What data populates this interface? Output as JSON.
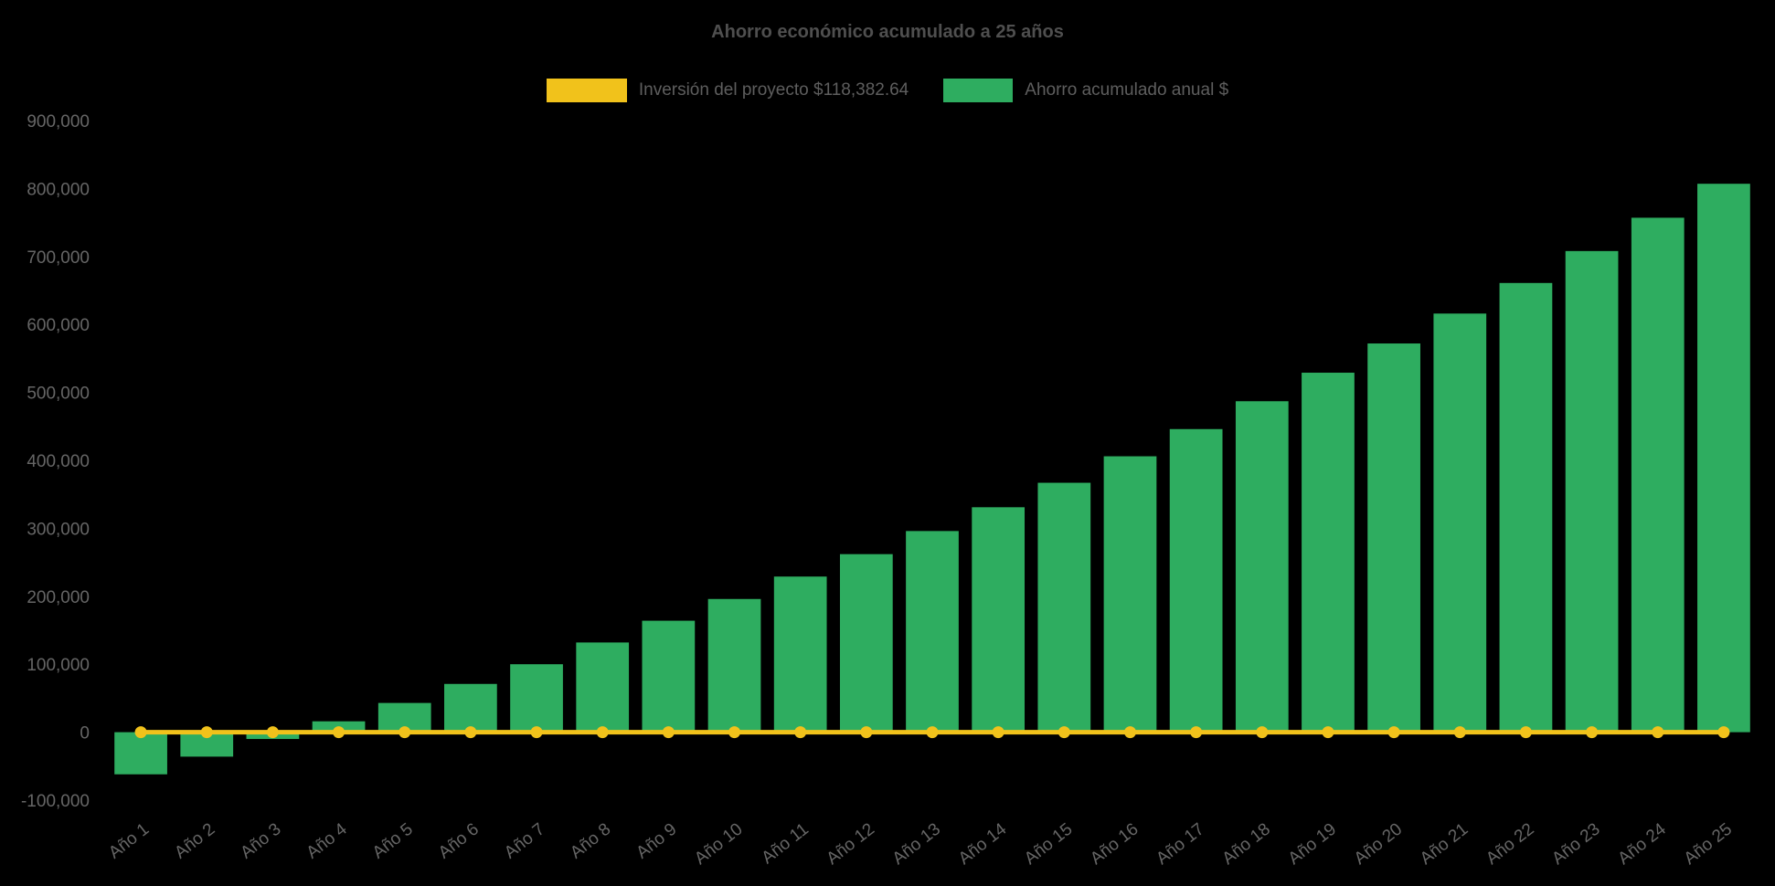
{
  "chart_data": {
    "type": "bar",
    "title": "Ahorro económico acumulado a 25 años",
    "background": "#000000",
    "grid": false,
    "legend_position": "top",
    "ylim": [
      -100000,
      900000
    ],
    "y_tick_step": 100000,
    "y_ticks": [
      {
        "value": 900000,
        "label": "900,000"
      },
      {
        "value": 800000,
        "label": "800,000"
      },
      {
        "value": 700000,
        "label": "700,000"
      },
      {
        "value": 600000,
        "label": "600,000"
      },
      {
        "value": 500000,
        "label": "500,000"
      },
      {
        "value": 400000,
        "label": "400,000"
      },
      {
        "value": 300000,
        "label": "300,000"
      },
      {
        "value": 200000,
        "label": "200,000"
      },
      {
        "value": 100000,
        "label": "100,000"
      },
      {
        "value": 0,
        "label": "0"
      },
      {
        "value": -100000,
        "label": "-100,000"
      }
    ],
    "categories": [
      "Año 1",
      "Año 2",
      "Año 3",
      "Año 4",
      "Año 5",
      "Año 6",
      "Año 7",
      "Año 8",
      "Año 9",
      "Año 10",
      "Año 11",
      "Año 12",
      "Año 13",
      "Año 14",
      "Año 15",
      "Año 16",
      "Año 17",
      "Año 18",
      "Año 19",
      "Año 20",
      "Año 21",
      "Año 22",
      "Año 23",
      "Año 24",
      "Año 25"
    ],
    "series": [
      {
        "name": "Inversión del proyecto $118,382.64",
        "type": "line",
        "color": "#F1C21B",
        "values": [
          0,
          0,
          0,
          0,
          0,
          0,
          0,
          0,
          0,
          0,
          0,
          0,
          0,
          0,
          0,
          0,
          0,
          0,
          0,
          0,
          0,
          0,
          0,
          0,
          0
        ]
      },
      {
        "name": "Ahorro acumulado anual $",
        "type": "bar",
        "color": "#2EAD60",
        "values": [
          -62000,
          -36000,
          -10000,
          16000,
          43000,
          71000,
          100000,
          132000,
          164000,
          196000,
          229000,
          262000,
          296000,
          331000,
          367000,
          406000,
          446000,
          487000,
          529000,
          572000,
          616000,
          661000,
          708000,
          757000,
          807000
        ]
      }
    ]
  }
}
